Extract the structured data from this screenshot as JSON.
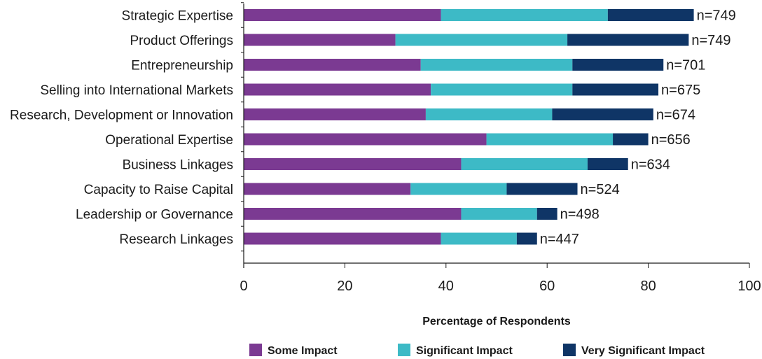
{
  "chart_data": {
    "type": "bar",
    "orientation": "horizontal",
    "stacked": true,
    "title": "",
    "xlabel": "Percentage of Respondents",
    "ylabel": "",
    "xlim": [
      0,
      100
    ],
    "x_ticks": [
      0,
      20,
      40,
      60,
      80,
      100
    ],
    "grid": false,
    "legend_position": "bottom",
    "categories": [
      "Strategic Expertise",
      "Product Offerings",
      "Entrepreneurship",
      "Selling into International Markets",
      "Research, Development or Innovation",
      "Operational Expertise",
      "Business Linkages",
      "Capacity to Raise Capital",
      "Leadership or Governance",
      "Research Linkages"
    ],
    "n_labels": [
      "n=749",
      "n=749",
      "n=701",
      "n=675",
      "n=674",
      "n=656",
      "n=634",
      "n=524",
      "n=498",
      "n=447"
    ],
    "series": [
      {
        "name": "Some Impact",
        "color": "#7b3a92",
        "values": [
          39,
          30,
          35,
          37,
          36,
          48,
          43,
          33,
          43,
          39
        ]
      },
      {
        "name": "Significant Impact",
        "color": "#3dbac6",
        "values": [
          33,
          34,
          30,
          28,
          25,
          25,
          25,
          19,
          15,
          15
        ]
      },
      {
        "name": "Very Significant Impact",
        "color": "#0f3566",
        "values": [
          17,
          24,
          18,
          17,
          20,
          7,
          8,
          14,
          4,
          4
        ]
      }
    ]
  }
}
